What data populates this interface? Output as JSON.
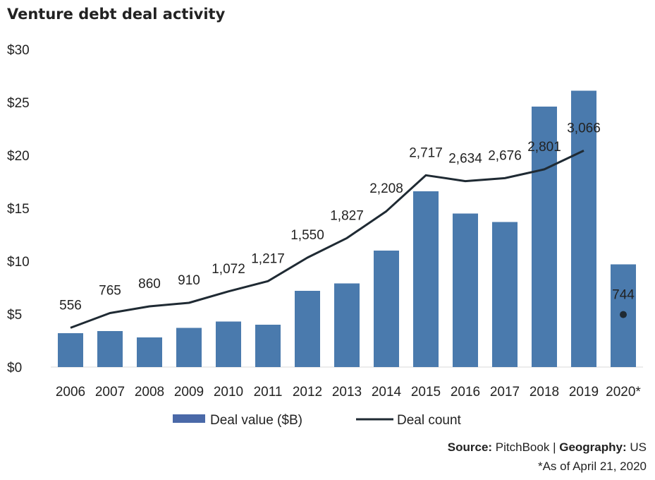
{
  "title": "Venture debt deal activity",
  "chart_data": {
    "type": "bar+line",
    "categories": [
      "2006",
      "2007",
      "2008",
      "2009",
      "2010",
      "2011",
      "2012",
      "2013",
      "2014",
      "2015",
      "2016",
      "2017",
      "2018",
      "2019",
      "2020*"
    ],
    "y_axis": {
      "prefix": "$",
      "min": 0,
      "max": 30,
      "ticks": [
        0,
        5,
        10,
        15,
        20,
        25,
        30
      ],
      "tick_labels": [
        "$0",
        "$5",
        "$10",
        "$15",
        "$20",
        "$25",
        "$30"
      ]
    },
    "series": [
      {
        "name": "Deal value ($B)",
        "kind": "bar",
        "color": "#4a7aad",
        "values": [
          3.2,
          3.4,
          2.8,
          3.7,
          4.3,
          4.0,
          7.2,
          7.9,
          11.0,
          16.6,
          14.5,
          13.7,
          24.6,
          26.1,
          9.7
        ]
      },
      {
        "name": "Deal count",
        "kind": "line",
        "color": "#1f2a33",
        "values": [
          556,
          765,
          860,
          910,
          1072,
          1217,
          1550,
          1827,
          2208,
          2717,
          2634,
          2676,
          2801,
          3066,
          744
        ],
        "labels": [
          "556",
          "765",
          "860",
          "910",
          "1,072",
          "1,217",
          "1,550",
          "1,827",
          "2,208",
          "2,717",
          "2,634",
          "2,676",
          "2,801",
          "3,066",
          "744"
        ]
      }
    ],
    "grid": false,
    "legend_position": "bottom"
  },
  "legend": {
    "bar_label": "Deal value ($B)",
    "line_label": "Deal count"
  },
  "footer": {
    "source_key": "Source:",
    "source_val": "PitchBook",
    "separator": "|",
    "geo_key": "Geography:",
    "geo_val": "US",
    "note": "*As of April 21, 2020"
  }
}
